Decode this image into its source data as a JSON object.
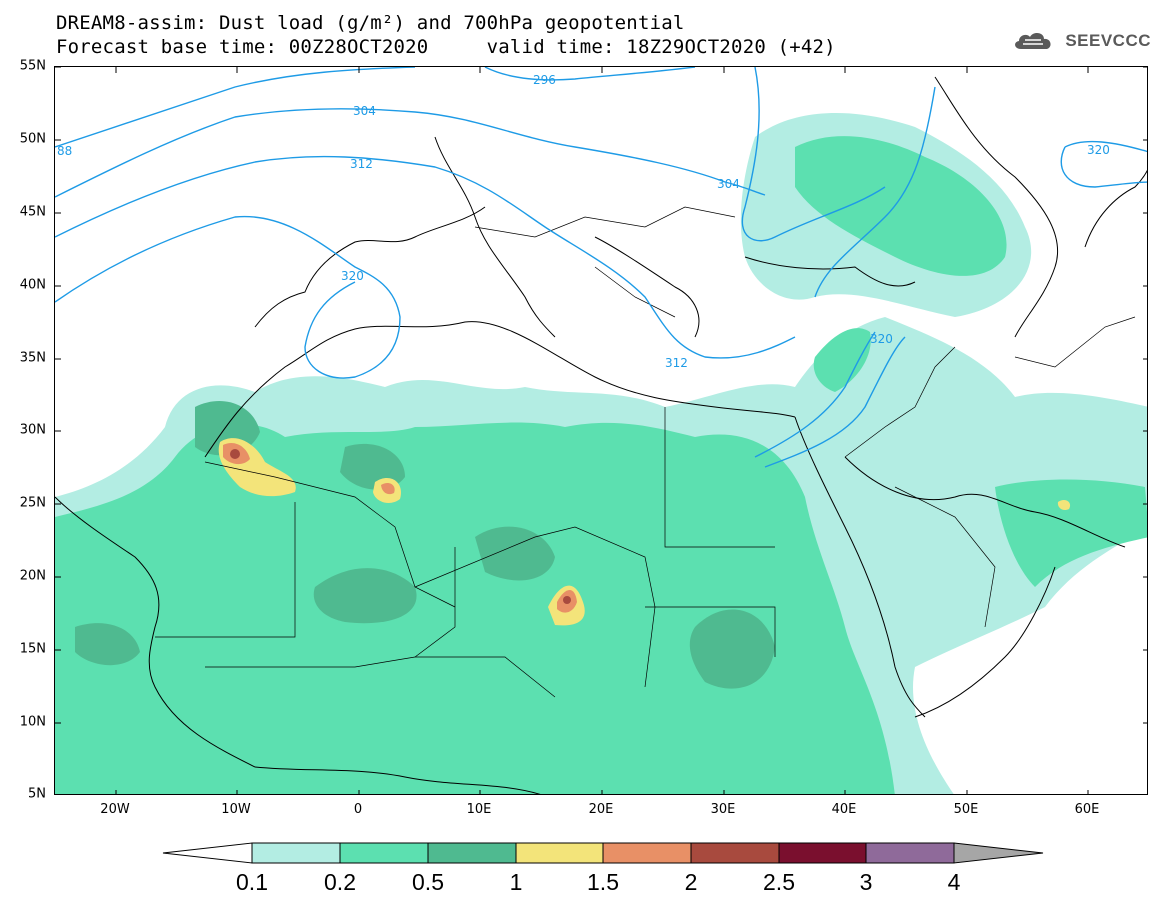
{
  "title": {
    "line1": "DREAM8-assim: Dust load (g/m²) and 700hPa geopotential",
    "line2": "Forecast base time: 00Z28OCT2020     valid time: 18Z29OCT2020 (+42)"
  },
  "logo": {
    "text": "SEEVCCC",
    "icon": "cloud-logo-icon"
  },
  "map": {
    "lon_range": [
      -25,
      65
    ],
    "lat_range": [
      5,
      55
    ],
    "lat_ticks": [
      "55N",
      "50N",
      "45N",
      "40N",
      "35N",
      "30N",
      "25N",
      "20N",
      "15N",
      "10N",
      "5N"
    ],
    "lon_ticks": [
      "20W",
      "10W",
      "0",
      "10E",
      "20E",
      "30E",
      "40E",
      "50E",
      "60E"
    ],
    "contour_labels": [
      "296",
      "304",
      "312",
      "320",
      "88",
      "304",
      "320",
      "312",
      "320"
    ],
    "background_color": "#ffffff",
    "contour_color": "#1e9be6",
    "boundary_color": "#000000"
  },
  "colorbar": {
    "levels": [
      "0.1",
      "0.2",
      "0.5",
      "1",
      "1.5",
      "2",
      "2.5",
      "3",
      "4"
    ],
    "colors": [
      "#b3ede3",
      "#5ce0b0",
      "#4fba90",
      "#f3e47a",
      "#e89066",
      "#a84a3e",
      "#7a0f2e",
      "#8f6a9a"
    ],
    "under_color": "#ffffff",
    "over_color": "#a6a6a6"
  }
}
